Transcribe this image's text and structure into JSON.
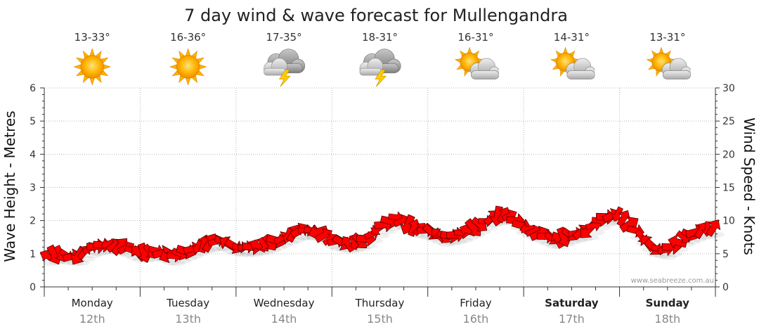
{
  "colors": {
    "arrow": "#ff0000",
    "arrow_stroke": "#5a0000",
    "grid": "#b8b8b8",
    "axis": "#333333"
  },
  "chart_data": {
    "type": "line",
    "title": "7 day wind & wave forecast for Mullengandra",
    "ylabel_left": "Wave Height - Metres",
    "ylabel_right": "Wind Speed - Knots",
    "ylim_left": [
      0,
      6
    ],
    "ylim_right": [
      0,
      30
    ],
    "yticks_left": [
      "0",
      "1",
      "2",
      "3",
      "4",
      "5",
      "6"
    ],
    "yticks_right": [
      "0",
      "5",
      "10",
      "15",
      "20",
      "25",
      "30"
    ],
    "watermark": "www.seabreeze.com.au",
    "days": [
      {
        "name": "Monday",
        "date": "12th",
        "temp": "13-33°",
        "icon": "sun-icon",
        "bold": false
      },
      {
        "name": "Tuesday",
        "date": "13th",
        "temp": "16-36°",
        "icon": "sun-icon",
        "bold": false
      },
      {
        "name": "Wednesday",
        "date": "14th",
        "temp": "17-35°",
        "icon": "storm-icon",
        "bold": false
      },
      {
        "name": "Thursday",
        "date": "15th",
        "temp": "18-31°",
        "icon": "storm-icon",
        "bold": false
      },
      {
        "name": "Friday",
        "date": "16th",
        "temp": "16-31°",
        "icon": "partly-cloudy-icon",
        "bold": false
      },
      {
        "name": "Saturday",
        "date": "17th",
        "temp": "14-31°",
        "icon": "partly-cloudy-icon",
        "bold": true
      },
      {
        "name": "Sunday",
        "date": "18th",
        "temp": "13-31°",
        "icon": "partly-cloudy-icon",
        "bold": true
      }
    ],
    "series": [
      {
        "name": "Wind Speed (knots)",
        "x_hours_from_start": [
          0,
          4,
          8,
          12,
          16,
          20,
          24,
          28,
          32,
          36,
          40,
          44,
          48,
          52,
          56,
          60,
          64,
          68,
          72,
          76,
          80,
          84,
          88,
          92,
          96,
          100,
          104,
          108,
          112,
          116,
          120,
          124,
          128,
          132,
          136,
          140,
          144,
          148,
          152,
          156,
          160,
          164,
          168
        ],
        "values": [
          4.5,
          5,
          4.5,
          6,
          6.5,
          6,
          5,
          5.5,
          4.5,
          5.5,
          6.5,
          7,
          6,
          6,
          6.5,
          7.5,
          8.5,
          8.5,
          7,
          6.5,
          7,
          9,
          10.5,
          9,
          8.5,
          7.5,
          8,
          9,
          10.5,
          11,
          9,
          8,
          7,
          8,
          8.5,
          10.5,
          11,
          8.5,
          6,
          5.5,
          7.5,
          8.5,
          9
        ]
      }
    ]
  }
}
